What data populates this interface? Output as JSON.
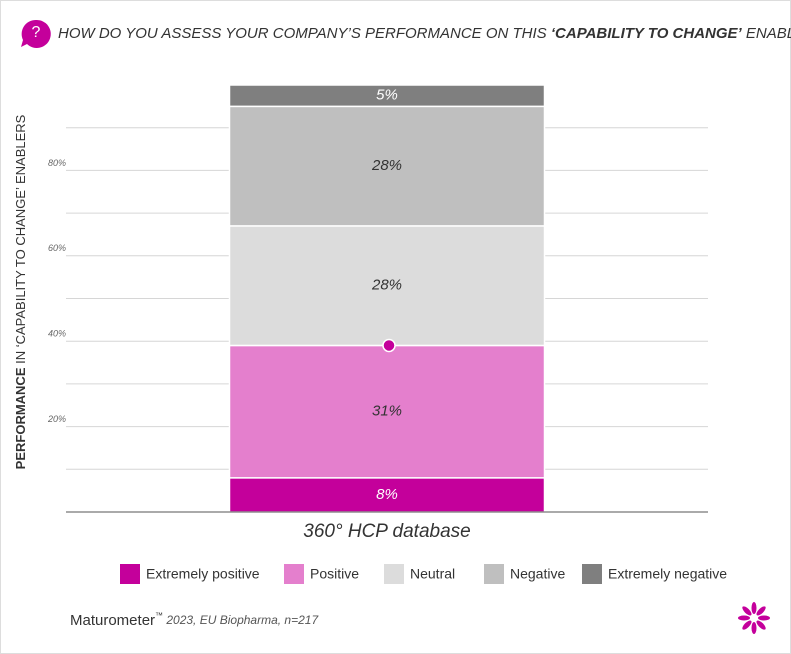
{
  "chart_data": {
    "type": "stacked_bar",
    "icon_text": "?",
    "title": [
      "HOW DO YOU ASSESS YOUR COMPANY’S PERFORMANCE ON THIS ",
      "‘CAPABILITY TO CHANGE’",
      " ENABLER?"
    ],
    "y_label": [
      "PERFORMANCE",
      " IN ‘CAPABILITY TO CHANGE’ ENABLERS"
    ],
    "categories": [
      "360° HCP database"
    ],
    "series": [
      {
        "name": "Extremely positive",
        "color": "#c4009b",
        "label_color": "#ffffff",
        "values": [
          8
        ],
        "value_labels": [
          "8%"
        ]
      },
      {
        "name": "Positive",
        "color": "#e47fcd",
        "label_color": "#333333",
        "values": [
          31
        ],
        "value_labels": [
          "31%"
        ]
      },
      {
        "name": "Neutral",
        "color": "#dcdcdc",
        "label_color": "#333333",
        "values": [
          28
        ],
        "value_labels": [
          "28%"
        ]
      },
      {
        "name": "Negative",
        "color": "#bfbfbf",
        "label_color": "#333333",
        "values": [
          28
        ],
        "value_labels": [
          "28%"
        ]
      },
      {
        "name": "Extremely negative",
        "color": "#7f7f7f",
        "label_color": "#ffffff",
        "values": [
          5
        ],
        "value_labels": [
          "5%"
        ]
      }
    ],
    "marker": {
      "value": 39,
      "color": "#c4009b"
    },
    "ylim": [
      0,
      100
    ],
    "yticks": [
      {
        "value": 20,
        "label": "20%"
      },
      {
        "value": 40,
        "label": "40%"
      },
      {
        "value": 60,
        "label": "60%"
      },
      {
        "value": 80,
        "label": "80%"
      }
    ],
    "ygrid": [
      10,
      20,
      30,
      40,
      50,
      60,
      70,
      80,
      90
    ],
    "footer": {
      "brand": "Maturometer",
      "mark": "™",
      "note": " 2023, EU Biopharma, n=217"
    }
  }
}
